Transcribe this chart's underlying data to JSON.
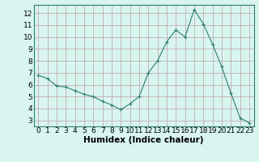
{
  "x": [
    0,
    1,
    2,
    3,
    4,
    5,
    6,
    7,
    8,
    9,
    10,
    11,
    12,
    13,
    14,
    15,
    16,
    17,
    18,
    19,
    20,
    21,
    22,
    23
  ],
  "y": [
    6.8,
    6.5,
    5.9,
    5.8,
    5.5,
    5.2,
    5.0,
    4.6,
    4.3,
    3.9,
    4.4,
    5.0,
    7.0,
    8.0,
    9.6,
    10.6,
    10.0,
    12.3,
    11.1,
    9.4,
    7.5,
    5.3,
    3.2,
    2.8
  ],
  "line_color": "#2d7d6e",
  "marker": "+",
  "marker_size": 3,
  "marker_linewidth": 0.8,
  "bg_color": "#d8f5f0",
  "grid_major_color": "#c0a0a0",
  "grid_minor_color": "#d8c8c8",
  "xlabel": "Humidex (Indice chaleur)",
  "xlabel_fontsize": 7.5,
  "tick_fontsize": 6.5,
  "ylim": [
    2.5,
    12.7
  ],
  "xlim": [
    -0.5,
    23.5
  ],
  "yticks": [
    3,
    4,
    5,
    6,
    7,
    8,
    9,
    10,
    11,
    12
  ],
  "xticks": [
    0,
    1,
    2,
    3,
    4,
    5,
    6,
    7,
    8,
    9,
    10,
    11,
    12,
    13,
    14,
    15,
    16,
    17,
    18,
    19,
    20,
    21,
    22,
    23
  ]
}
